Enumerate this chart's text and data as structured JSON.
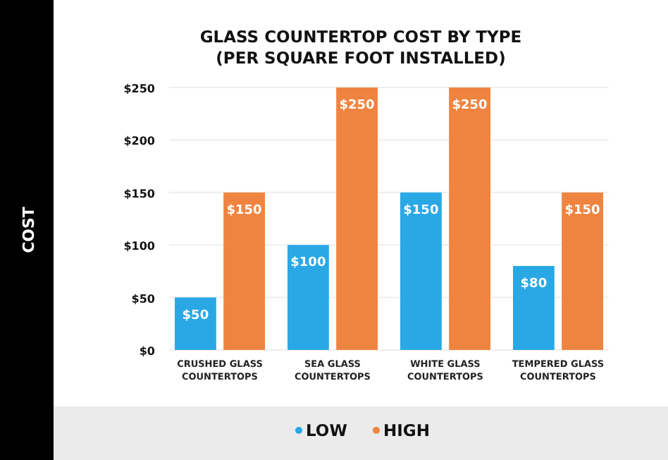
{
  "chart_data": {
    "type": "bar",
    "title": "GLASS COUNTERTOP COST BY TYPE (PER SQUARE FOOT INSTALLED)",
    "annotations": [
      "COST"
    ],
    "categories": [
      "CRUSHED GLASS COUNTERTOPS",
      "SEA GLASS COUNTERTOPS",
      "WHITE GLASS COUNTERTOPS",
      "TEMPERED GLASS COUNTERTOPS"
    ],
    "series": [
      {
        "name": "LOW",
        "color": "#2aa8e6",
        "values": [
          50,
          100,
          150,
          80
        ],
        "value_labels": [
          "$50",
          "$100",
          "$150",
          "$80"
        ]
      },
      {
        "name": "HIGH",
        "color": "#ef8440",
        "values": [
          150,
          250,
          250,
          150
        ],
        "value_labels": [
          "$150",
          "$250",
          "$250",
          "$150"
        ]
      }
    ],
    "ylim": [
      0,
      250
    ],
    "yticks": [
      {
        "value": 0,
        "label": "$0"
      },
      {
        "value": 50,
        "label": "$50"
      },
      {
        "value": 100,
        "label": "$100"
      },
      {
        "value": 150,
        "label": "$150"
      },
      {
        "value": 200,
        "label": "$200"
      },
      {
        "value": 250,
        "label": "$250"
      }
    ],
    "grid": "y",
    "legend": "bottom"
  }
}
